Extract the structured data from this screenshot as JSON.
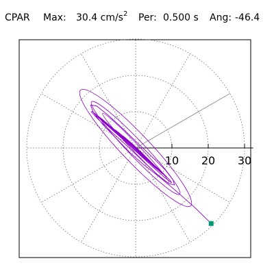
{
  "header": {
    "station": "CPAR",
    "max_label": "Max:",
    "max_value": "30.4 cm/s",
    "max_exp": "2",
    "per_label": "Per:",
    "per_value": "0.500 s",
    "ang_label": "Ang:",
    "ang_value": "-46.4"
  },
  "colors": {
    "trace": "#8b00c8",
    "marker": "#009970",
    "grid": "#7a7a7a",
    "axis": "#000000"
  },
  "chart_data": {
    "type": "polar",
    "title": "",
    "radial_ticks": [
      10,
      20,
      30
    ],
    "radial_tick_labels": [
      "10",
      "20",
      "30"
    ],
    "r_max": 30.4,
    "grid": true,
    "grid_rings": [
      10,
      20,
      30
    ],
    "spoke_step_deg": 30,
    "axis_angle_deg": 0,
    "max_angle_deg": 30,
    "peak_point": {
      "x": 20.8,
      "y": -20.8
    },
    "series": [
      {
        "dominant_angle_deg": -46.4,
        "path_points": [
          [
            20.8,
            -20.8
          ],
          [
            16.4,
            -16.5
          ],
          [
            11.2,
            -11.9
          ],
          [
            6.3,
            -7.8
          ],
          [
            2.2,
            -4.6
          ],
          [
            -1.6,
            -1.2
          ],
          [
            -5.2,
            2.5
          ],
          [
            -8.9,
            6.3
          ],
          [
            -11.6,
            9.7
          ],
          [
            -12.4,
            11.8
          ],
          [
            -10.8,
            11.6
          ],
          [
            -7.4,
            8.9
          ],
          [
            -3.3,
            5.1
          ],
          [
            0.9,
            1.0
          ],
          [
            4.8,
            -2.7
          ],
          [
            8.2,
            -6.1
          ],
          [
            10.3,
            -8.8
          ],
          [
            10.7,
            -10.2
          ],
          [
            9.1,
            -9.8
          ],
          [
            5.7,
            -7.1
          ],
          [
            1.6,
            -3.2
          ],
          [
            -2.6,
            0.8
          ],
          [
            -6.7,
            4.5
          ],
          [
            -10.2,
            7.8
          ],
          [
            -12.2,
            9.9
          ],
          [
            -12.0,
            10.1
          ],
          [
            -9.3,
            8.0
          ],
          [
            -5.1,
            4.4
          ],
          [
            -0.6,
            0.4
          ],
          [
            3.6,
            -3.3
          ],
          [
            7.2,
            -6.6
          ],
          [
            9.5,
            -8.9
          ],
          [
            9.9,
            -9.6
          ],
          [
            8.1,
            -8.2
          ],
          [
            4.6,
            -5.1
          ],
          [
            0.4,
            -1.2
          ],
          [
            -3.8,
            2.6
          ],
          [
            -7.6,
            6.0
          ],
          [
            -10.4,
            8.5
          ],
          [
            -11.3,
            9.3
          ],
          [
            -9.8,
            8.1
          ],
          [
            -6.2,
            5.1
          ],
          [
            -1.8,
            1.2
          ],
          [
            2.5,
            -2.6
          ],
          [
            6.1,
            -5.8
          ],
          [
            8.4,
            -7.8
          ],
          [
            8.7,
            -8.1
          ],
          [
            6.8,
            -6.5
          ],
          [
            3.3,
            -3.4
          ],
          [
            -0.8,
            0.3
          ],
          [
            -4.7,
            3.8
          ],
          [
            -7.9,
            6.6
          ],
          [
            -9.7,
            8.1
          ],
          [
            -9.5,
            7.8
          ],
          [
            -7.1,
            5.7
          ],
          [
            -3.2,
            2.2
          ],
          [
            1.0,
            -1.6
          ],
          [
            4.8,
            -4.9
          ],
          [
            7.4,
            -7.1
          ],
          [
            8.1,
            -7.6
          ],
          [
            6.6,
            -6.2
          ],
          [
            3.5,
            -3.3
          ],
          [
            -0.2,
            0.1
          ],
          [
            -3.9,
            3.3
          ],
          [
            -6.8,
            5.8
          ],
          [
            -8.1,
            6.8
          ],
          [
            -7.4,
            6.0
          ],
          [
            -4.8,
            3.6
          ],
          [
            -1.2,
            0.4
          ],
          [
            2.4,
            -2.8
          ],
          [
            5.1,
            -5.2
          ],
          [
            6.2,
            -6.1
          ],
          [
            5.4,
            -5.1
          ],
          [
            2.9,
            -2.6
          ],
          [
            -0.4,
            0.5
          ],
          [
            -3.4,
            3.2
          ],
          [
            -5.5,
            4.9
          ],
          [
            -5.9,
            5.1
          ],
          [
            -4.4,
            3.7
          ],
          [
            -1.6,
            1.1
          ],
          [
            1.5,
            -1.8
          ],
          [
            3.9,
            -3.8
          ],
          [
            4.8,
            -4.5
          ],
          [
            3.9,
            -3.5
          ],
          [
            1.6,
            -1.2
          ],
          [
            -1.1,
            1.3
          ],
          [
            -3.2,
            3.1
          ],
          [
            -3.9,
            3.6
          ],
          [
            -2.9,
            2.6
          ],
          [
            -0.8,
            0.5
          ],
          [
            1.3,
            -1.3
          ],
          [
            2.6,
            -2.4
          ],
          [
            2.5,
            -2.2
          ],
          [
            1.1,
            -0.9
          ],
          [
            -0.6,
            0.7
          ],
          [
            -1.7,
            1.6
          ],
          [
            -1.6,
            1.4
          ],
          [
            -0.6,
            0.4
          ],
          [
            0.5,
            -0.5
          ],
          [
            1.0,
            -0.9
          ],
          [
            0.6,
            -0.5
          ],
          [
            -0.2,
            0.2
          ],
          [
            -0.5,
            0.4
          ],
          [
            -0.2,
            0.1
          ],
          [
            0.1,
            -0.1
          ]
        ]
      }
    ]
  }
}
